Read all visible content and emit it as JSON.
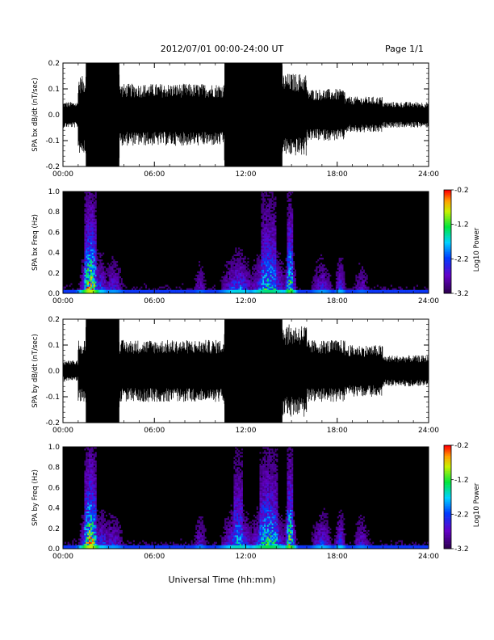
{
  "header": {
    "date_range": "2012/07/01   00:00-24:00 UT",
    "page": "Page 1/1"
  },
  "x_axis": {
    "label": "Universal Time (hh:mm)",
    "ticks": [
      "00:00",
      "06:00",
      "12:00",
      "18:00",
      "24:00"
    ]
  },
  "colorbar": {
    "label": "Log10 Power",
    "ticks": [
      "-0.2",
      "-1.2",
      "-2.2",
      "-3.2"
    ]
  },
  "chart_data": [
    {
      "type": "line",
      "ylabel": "SPA bx dB/dt (nT/sec)",
      "xlim": [
        0,
        24
      ],
      "ylim": [
        -0.2,
        0.2
      ],
      "yticks": [
        "0.2",
        "0.1",
        "0.0",
        "-0.1",
        "-0.2"
      ],
      "grid": false,
      "segments": [
        {
          "start": 0,
          "end": 1.0,
          "amp": 0.05
        },
        {
          "start": 1.0,
          "end": 1.5,
          "amp": 0.15
        },
        {
          "start": 1.5,
          "end": 3.7,
          "amp": 0.2
        },
        {
          "start": 3.7,
          "end": 10.6,
          "amp": 0.12
        },
        {
          "start": 10.6,
          "end": 14.4,
          "amp": 0.2
        },
        {
          "start": 14.4,
          "end": 16.0,
          "amp": 0.16
        },
        {
          "start": 16.0,
          "end": 18.5,
          "amp": 0.1
        },
        {
          "start": 18.5,
          "end": 21.0,
          "amp": 0.07
        },
        {
          "start": 21.0,
          "end": 24.0,
          "amp": 0.05
        }
      ]
    },
    {
      "type": "heatmap",
      "ylabel": "SPA bx Freq (Hz)",
      "xlim": [
        0,
        24
      ],
      "ylim": [
        0,
        1.0
      ],
      "yticks": [
        "1.0",
        "0.8",
        "0.6",
        "0.4",
        "0.2",
        "0.0"
      ],
      "zlim": [
        -3.2,
        -0.2
      ],
      "activity": [
        {
          "center": 1.8,
          "width": 0.5,
          "intensity": 1.0
        },
        {
          "center": 2.5,
          "width": 0.4,
          "intensity": 0.45
        },
        {
          "center": 3.3,
          "width": 0.6,
          "intensity": 0.35
        },
        {
          "center": 9.0,
          "width": 0.4,
          "intensity": 0.25
        },
        {
          "center": 11.5,
          "width": 0.9,
          "intensity": 0.5
        },
        {
          "center": 13.5,
          "width": 1.0,
          "intensity": 0.65
        },
        {
          "center": 14.9,
          "width": 0.3,
          "intensity": 0.8
        },
        {
          "center": 17.0,
          "width": 0.6,
          "intensity": 0.35
        },
        {
          "center": 18.2,
          "width": 0.3,
          "intensity": 0.4
        },
        {
          "center": 19.6,
          "width": 0.5,
          "intensity": 0.25
        }
      ]
    },
    {
      "type": "line",
      "ylabel": "SPA by dB/dt (nT/sec)",
      "xlim": [
        0,
        24
      ],
      "ylim": [
        -0.2,
        0.2
      ],
      "yticks": [
        "0.2",
        "0.1",
        "0.0",
        "-0.1",
        "-0.2"
      ],
      "grid": false,
      "segments": [
        {
          "start": 0,
          "end": 1.0,
          "amp": 0.04
        },
        {
          "start": 1.0,
          "end": 1.5,
          "amp": 0.12
        },
        {
          "start": 1.5,
          "end": 3.7,
          "amp": 0.2
        },
        {
          "start": 3.7,
          "end": 10.6,
          "amp": 0.12
        },
        {
          "start": 10.6,
          "end": 14.4,
          "amp": 0.2
        },
        {
          "start": 14.4,
          "end": 16.0,
          "amp": 0.18
        },
        {
          "start": 16.0,
          "end": 18.5,
          "amp": 0.12
        },
        {
          "start": 18.5,
          "end": 21.0,
          "amp": 0.1
        },
        {
          "start": 21.0,
          "end": 24.0,
          "amp": 0.06
        }
      ]
    },
    {
      "type": "heatmap",
      "ylabel": "SPA by Freq (Hz)",
      "xlim": [
        0,
        24
      ],
      "ylim": [
        0,
        1.0
      ],
      "yticks": [
        "1.0",
        "0.8",
        "0.6",
        "0.4",
        "0.2",
        "0.0"
      ],
      "zlim": [
        -3.2,
        -0.2
      ],
      "activity": [
        {
          "center": 1.8,
          "width": 0.5,
          "intensity": 1.0
        },
        {
          "center": 2.6,
          "width": 0.4,
          "intensity": 0.45
        },
        {
          "center": 3.3,
          "width": 0.6,
          "intensity": 0.35
        },
        {
          "center": 9.0,
          "width": 0.4,
          "intensity": 0.3
        },
        {
          "center": 11.5,
          "width": 0.9,
          "intensity": 0.55
        },
        {
          "center": 13.5,
          "width": 1.0,
          "intensity": 0.7
        },
        {
          "center": 14.9,
          "width": 0.3,
          "intensity": 0.85
        },
        {
          "center": 17.0,
          "width": 0.6,
          "intensity": 0.4
        },
        {
          "center": 18.2,
          "width": 0.3,
          "intensity": 0.45
        },
        {
          "center": 19.6,
          "width": 0.5,
          "intensity": 0.3
        }
      ]
    }
  ]
}
